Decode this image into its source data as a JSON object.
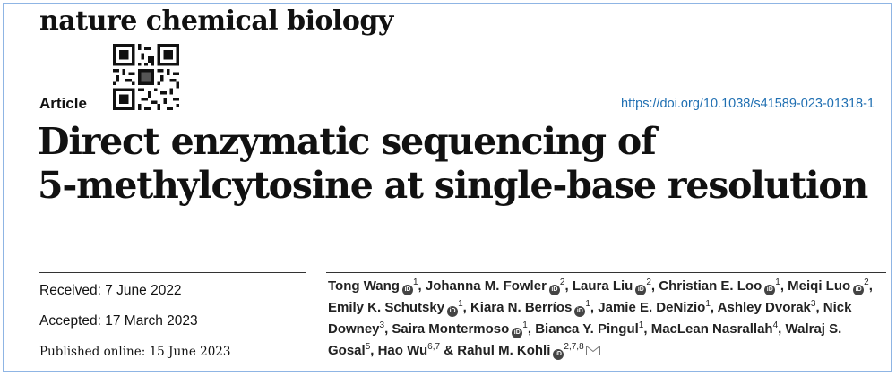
{
  "header": {
    "journal": "nature chemical biology",
    "article_type": "Article",
    "doi": "https://doi.org/10.1038/s41589-023-01318-1"
  },
  "title": {
    "line1": "Direct enzymatic sequencing of",
    "line2": "5-methylcytosine at single-base resolution"
  },
  "dates": {
    "received": "Received: 7 June 2022",
    "accepted": "Accepted: 17 March 2023",
    "published": "Published online: 15 June 2023"
  },
  "authors": [
    {
      "name": "Tong Wang",
      "orcid": true,
      "aff": "1",
      "sep": ", "
    },
    {
      "name": "Johanna M. Fowler",
      "orcid": true,
      "aff": "2",
      "sep": ", "
    },
    {
      "name": "Laura Liu",
      "orcid": true,
      "aff": "2",
      "sep": ", "
    },
    {
      "name": "Christian E. Loo",
      "orcid": true,
      "aff": "1",
      "sep": ", "
    },
    {
      "name": "Meiqi Luo",
      "orcid": true,
      "aff": "2",
      "sep": ", "
    },
    {
      "name": "Emily K. Schutsky",
      "orcid": true,
      "aff": "1",
      "sep": ", "
    },
    {
      "name": "Kiara N. Berríos",
      "orcid": true,
      "aff": "1",
      "sep": ", "
    },
    {
      "name": "Jamie E. DeNizio",
      "orcid": false,
      "aff": "1",
      "sep": ", "
    },
    {
      "name": "Ashley Dvorak",
      "orcid": false,
      "aff": "3",
      "sep": ", "
    },
    {
      "name": "Nick Downey",
      "orcid": false,
      "aff": "3",
      "sep": ", "
    },
    {
      "name": "Saira Montermoso",
      "orcid": true,
      "aff": "1",
      "sep": ", "
    },
    {
      "name": "Bianca Y. Pingul",
      "orcid": false,
      "aff": "1",
      "sep": ", "
    },
    {
      "name": "MacLean Nasrallah",
      "orcid": false,
      "aff": "4",
      "sep": ", "
    },
    {
      "name": "Walraj S. Gosal",
      "orcid": false,
      "aff": "5",
      "sep": ", "
    },
    {
      "name": "Hao Wu",
      "orcid": false,
      "aff": "6,7",
      "sep": " & "
    },
    {
      "name": "Rahul M. Kohli",
      "orcid": true,
      "aff": "2,7,8",
      "sep": "",
      "email": true
    }
  ],
  "icons": {
    "orcid": "orcid-icon",
    "email": "envelope-icon",
    "qr": "qr-code"
  },
  "colors": {
    "doi_link": "#1f6fb2",
    "frame_border": "#8fb5e4"
  }
}
